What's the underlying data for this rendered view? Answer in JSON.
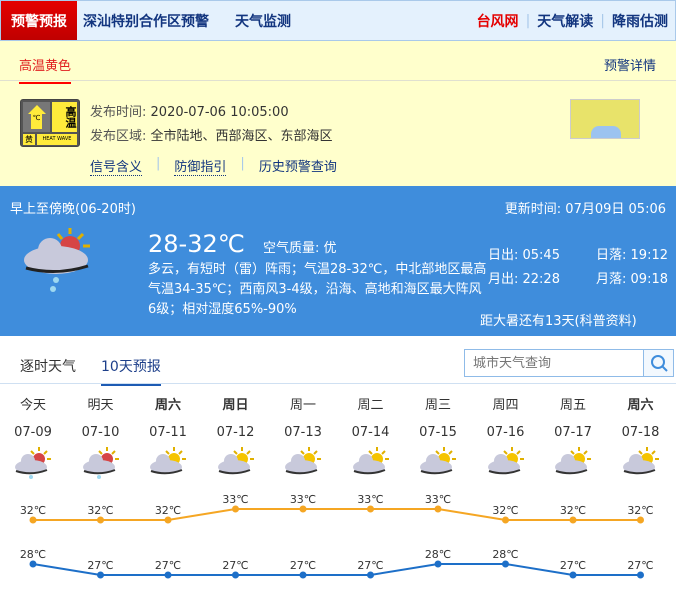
{
  "nav": {
    "active": "预警预报",
    "links": [
      "深汕特别合作区预警",
      "天气监测"
    ],
    "right": [
      "台风网",
      "天气解读",
      "降雨估测"
    ]
  },
  "warning": {
    "tab": "高温黄色",
    "detail": "预警详情",
    "signal": {
      "title": "高温",
      "level": "黄",
      "en": "HEAT WAVE",
      "unit": "℃"
    },
    "time_label": "发布时间:",
    "time": "2020-07-06 10:05:00",
    "area_label": "发布区域:",
    "area": "全市陆地、西部海区、东部海区",
    "links": [
      "信号含义",
      "防御指引",
      "历史预警查询"
    ]
  },
  "now": {
    "period": "早上至傍晚(06-20时)",
    "update": "更新时间: 07月09日 05:06",
    "temp": "28-32℃",
    "aq": "空气质量: 优",
    "desc": "多云，有短时（雷）阵雨；气温28-32℃，中北部地区最高气温34-35℃；西南风3-4级，沿海、高地和海区最大阵风6级；相对湿度65%-90%",
    "sunrise": "日出: 05:45",
    "sunset": "日落: 19:12",
    "moonrise": "月出: 22:28",
    "moonset": "月落: 09:18",
    "solar": "距大暑还有13天(科普资料)"
  },
  "tabs": [
    "逐时天气",
    "10天预报"
  ],
  "search": {
    "placeholder": "城市天气查询"
  },
  "forecast": [
    {
      "week": "今天",
      "date": "07-09",
      "icon": "thunder-rain",
      "bold": false
    },
    {
      "week": "明天",
      "date": "07-10",
      "icon": "thunder-rain",
      "bold": false
    },
    {
      "week": "周六",
      "date": "07-11",
      "icon": "partly-cloudy",
      "bold": true
    },
    {
      "week": "周日",
      "date": "07-12",
      "icon": "partly-cloudy",
      "bold": true
    },
    {
      "week": "周一",
      "date": "07-13",
      "icon": "partly-cloudy",
      "bold": false
    },
    {
      "week": "周二",
      "date": "07-14",
      "icon": "partly-cloudy",
      "bold": false
    },
    {
      "week": "周三",
      "date": "07-15",
      "icon": "partly-cloudy",
      "bold": false
    },
    {
      "week": "周四",
      "date": "07-16",
      "icon": "partly-cloudy",
      "bold": false
    },
    {
      "week": "周五",
      "date": "07-17",
      "icon": "partly-cloudy",
      "bold": false
    },
    {
      "week": "周六",
      "date": "07-18",
      "icon": "partly-cloudy",
      "bold": true
    }
  ],
  "chart_data": {
    "type": "line",
    "series": [
      {
        "values": [
          32,
          32,
          32,
          33,
          33,
          33,
          33,
          32,
          32,
          32
        ],
        "color": "#f5a623"
      },
      {
        "values": [
          28,
          27,
          27,
          27,
          27,
          27,
          28,
          28,
          27,
          27
        ],
        "color": "#1d6fc8"
      }
    ],
    "unit": "°C"
  },
  "colors": {
    "accent": "#3f8ddc",
    "alert": "#e40000"
  }
}
